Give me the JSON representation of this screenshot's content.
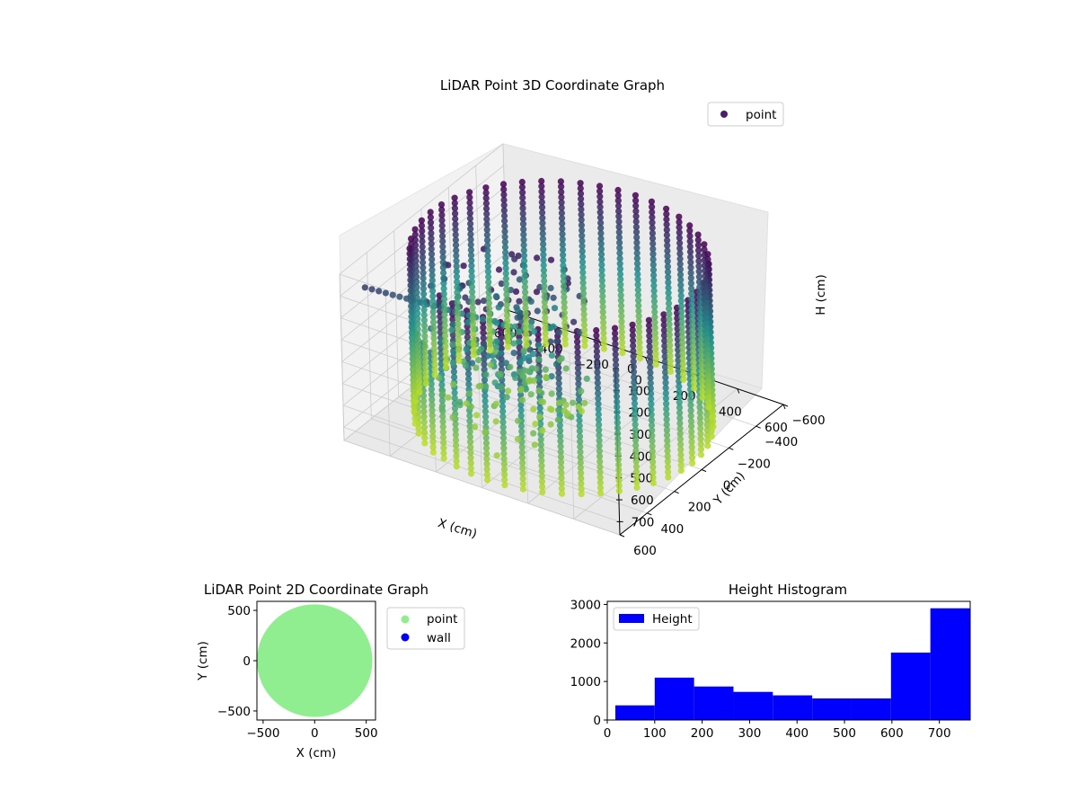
{
  "colors": {
    "viridis_dark": "#440154",
    "viridis_mid": "#21918c",
    "viridis_light": "#bddf26",
    "point_2d": "#90ee90",
    "wall_2d": "#0000ff",
    "histogram_bar": "#0000ff",
    "pane": "#f2f2f2",
    "grid": "#cccccc"
  },
  "chart_data": [
    {
      "id": "scatter3d",
      "type": "scatter",
      "projection": "3d",
      "title": "LiDAR Point 3D Coordinate Graph",
      "xlabel": "X (cm)",
      "ylabel": "Y (cm)",
      "zlabel": "H (cm)",
      "xlim": [
        -600,
        600
      ],
      "ylim": [
        -600,
        600
      ],
      "zlim": [
        0,
        760
      ],
      "z_inverted": true,
      "xticks": [
        "−600",
        "−400",
        "−200",
        "0",
        "200",
        "400",
        "600"
      ],
      "yticks": [
        "−600",
        "−400",
        "−200",
        "0",
        "200",
        "400",
        "600"
      ],
      "zticks": [
        "0",
        "100",
        "200",
        "300",
        "400",
        "500",
        "600",
        "700"
      ],
      "grid": true,
      "legend": {
        "position": "top-right",
        "entries": [
          "point"
        ]
      },
      "colormap": "viridis",
      "color_by": "H",
      "structure": {
        "wall_radius": 560,
        "wall_columns": 48,
        "wall_height_range": [
          0,
          760
        ],
        "wall_gap_angle_range": [
          115,
          150
        ]
      }
    },
    {
      "id": "scatter2d",
      "type": "scatter",
      "title": "LiDAR Point 2D Coordinate Graph",
      "xlabel": "X (cm)",
      "ylabel": "Y (cm)",
      "xlim": [
        -560,
        590
      ],
      "ylim": [
        -590,
        590
      ],
      "xticks": [
        "−500",
        "0",
        "500"
      ],
      "yticks": [
        "−500",
        "0",
        "500"
      ],
      "legend": {
        "position": "outside-right",
        "entries": [
          "point",
          "wall"
        ]
      },
      "series": [
        {
          "name": "point",
          "shape": "filled disc",
          "radius": 560
        },
        {
          "name": "wall",
          "values": []
        }
      ]
    },
    {
      "id": "histogram",
      "type": "bar",
      "title": "Height Histogram",
      "xlabel": "",
      "ylabel": "",
      "xlim": [
        0,
        765
      ],
      "ylim": [
        0,
        3080
      ],
      "xticks": [
        "0",
        "100",
        "200",
        "300",
        "400",
        "500",
        "600",
        "700"
      ],
      "yticks": [
        "0",
        "1000",
        "2000",
        "3000"
      ],
      "legend": {
        "position": "top-left",
        "entries": [
          "Height"
        ]
      },
      "bin_edges": [
        17,
        100,
        183,
        266,
        349,
        432,
        515,
        598,
        681,
        764
      ],
      "series": [
        {
          "name": "Height",
          "values": [
            380,
            1100,
            870,
            730,
            640,
            560,
            560,
            1750,
            2900
          ]
        }
      ]
    }
  ]
}
